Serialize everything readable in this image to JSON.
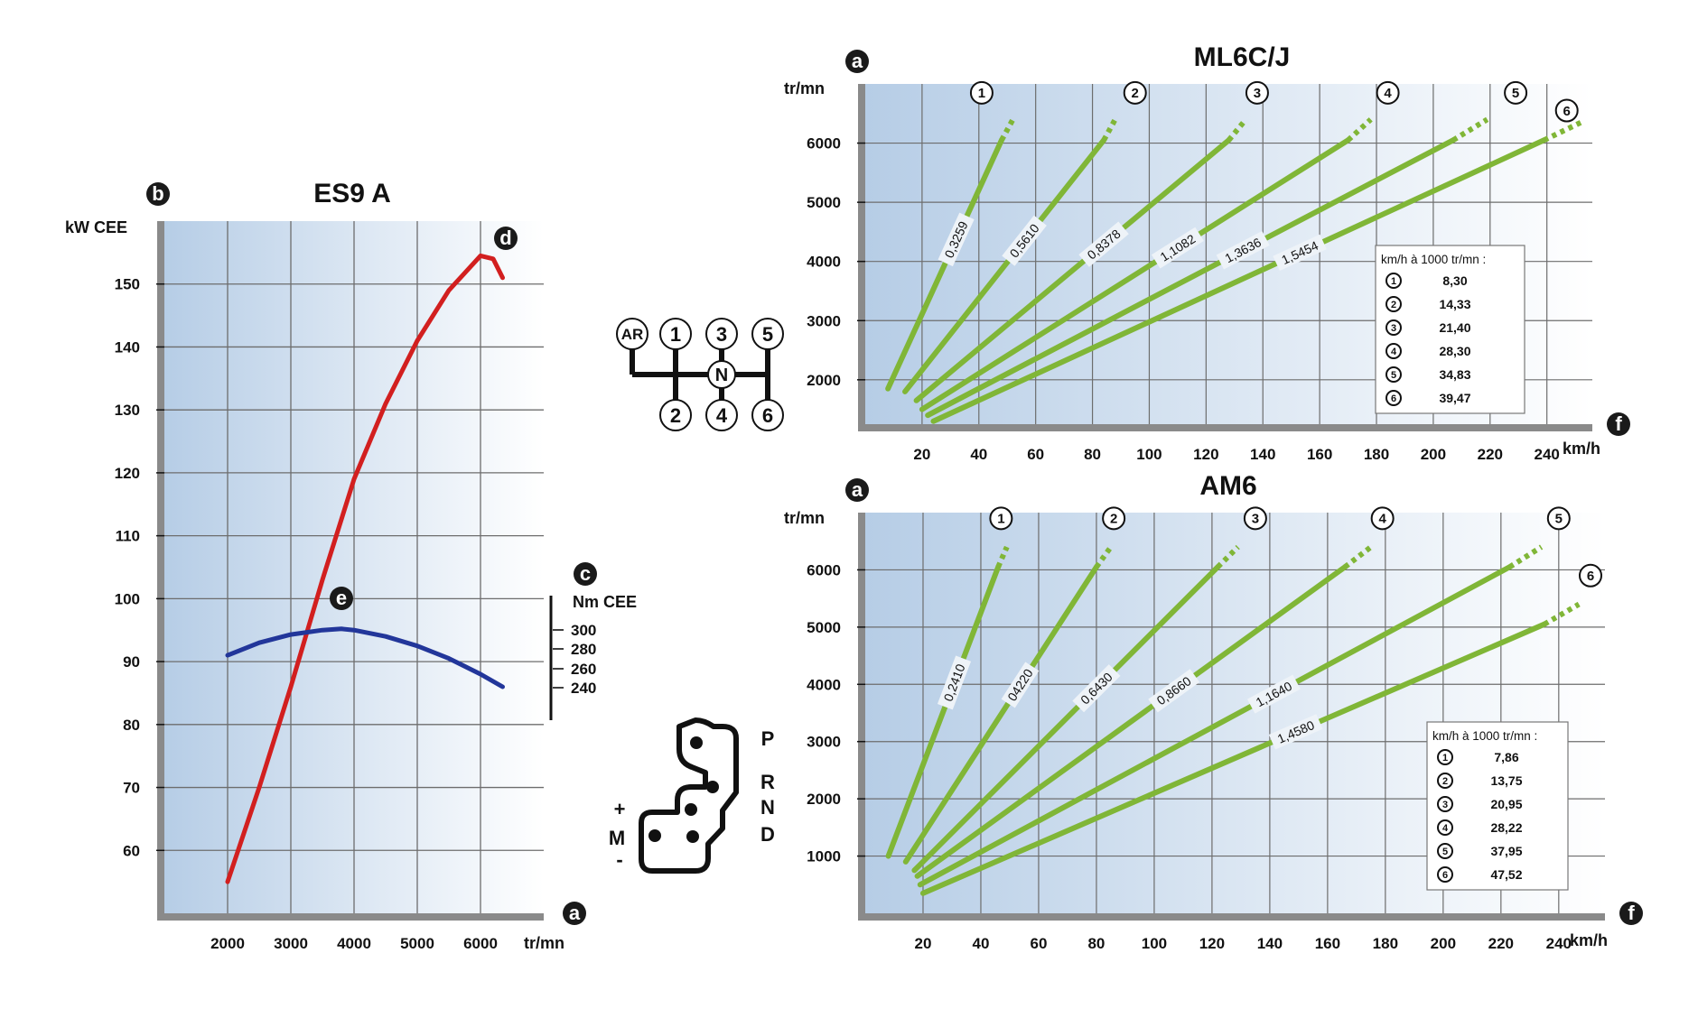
{
  "chart_data": [
    {
      "type": "line",
      "title": "ES9 A",
      "corner_labels": {
        "left_axis": "b",
        "right_axis": "c",
        "power_curve": "d",
        "torque_curve": "e",
        "x_axis": "a"
      },
      "xlabel": "tr/mn",
      "ylabel": "kW CEE",
      "y2label": "Nm CEE",
      "x_ticks": [
        2000,
        3000,
        4000,
        5000,
        6000
      ],
      "y_ticks": [
        60,
        70,
        80,
        90,
        100,
        110,
        120,
        130,
        140,
        150
      ],
      "y2_ticks": [
        300,
        280,
        260,
        240
      ],
      "xlim": [
        1000,
        7000
      ],
      "ylim": [
        50,
        160
      ],
      "grid": true,
      "series": [
        {
          "label": "d",
          "color": "#d21f1f",
          "x": [
            2000,
            2500,
            3000,
            3500,
            4000,
            4500,
            5000,
            5500,
            6000,
            6200,
            6350
          ],
          "y": [
            55,
            70,
            86,
            103,
            119,
            131,
            141,
            149,
            154.5,
            154,
            151
          ]
        },
        {
          "label": "e",
          "color": "#22369a",
          "x": [
            2000,
            2500,
            3000,
            3500,
            3800,
            4000,
            4500,
            5000,
            5500,
            6000,
            6350
          ],
          "y": [
            91,
            93,
            94.3,
            95,
            95.2,
            95,
            94,
            92.5,
            90.5,
            88,
            86
          ]
        }
      ]
    },
    {
      "type": "line",
      "title": "ML6C/J",
      "corner_labels": {
        "y_axis": "a",
        "x_axis": "f"
      },
      "xlabel": "km/h",
      "ylabel": "tr/mn",
      "x_ticks": [
        20,
        40,
        60,
        80,
        100,
        120,
        140,
        160,
        180,
        200,
        220,
        240
      ],
      "y_ticks": [
        2000,
        3000,
        4000,
        5000,
        6000
      ],
      "xlim": [
        0,
        256
      ],
      "ylim": [
        1250,
        7000
      ],
      "grid": true,
      "legend": {
        "title": "km/h à 1000 tr/mn :",
        "placement": "lower-right",
        "entries": [
          {
            "gear": "1",
            "value": "8,30"
          },
          {
            "gear": "2",
            "value": "14,33"
          },
          {
            "gear": "3",
            "value": "21,40"
          },
          {
            "gear": "4",
            "value": "28,30"
          },
          {
            "gear": "5",
            "value": "34,83"
          },
          {
            "gear": "6",
            "value": "39,47"
          }
        ]
      },
      "series": [
        {
          "gear": "1",
          "ratio_label": "0,3259",
          "x0": 8,
          "y0": 1850,
          "x1": 48,
          "y1": 6050,
          "x2": 52,
          "y2": 6400,
          "label_xy": [
            41,
            6850
          ]
        },
        {
          "gear": "2",
          "ratio_label": "0,5610",
          "x0": 14,
          "y0": 1800,
          "x1": 84,
          "y1": 6050,
          "x2": 88,
          "y2": 6400,
          "label_xy": [
            95,
            6850
          ]
        },
        {
          "gear": "3",
          "ratio_label": "0,8378",
          "x0": 18,
          "y0": 1650,
          "x1": 128,
          "y1": 6050,
          "x2": 134,
          "y2": 6400,
          "label_xy": [
            138,
            6850
          ]
        },
        {
          "gear": "4",
          "ratio_label": "1,1082",
          "x0": 20,
          "y0": 1500,
          "x1": 170,
          "y1": 6050,
          "x2": 178,
          "y2": 6400,
          "label_xy": [
            184,
            6850
          ]
        },
        {
          "gear": "5",
          "ratio_label": "1,3636",
          "x0": 22,
          "y0": 1400,
          "x1": 207,
          "y1": 6050,
          "x2": 219,
          "y2": 6400,
          "label_xy": [
            229,
            6850
          ]
        },
        {
          "gear": "6",
          "ratio_label": "1,5454",
          "x0": 24,
          "y0": 1300,
          "x1": 239,
          "y1": 6050,
          "x2": 252,
          "y2": 6350,
          "label_xy": [
            247,
            6550
          ]
        }
      ]
    },
    {
      "type": "line",
      "title": "AM6",
      "corner_labels": {
        "y_axis": "a",
        "x_axis": "f"
      },
      "xlabel": "km/h",
      "ylabel": "tr/mn",
      "x_ticks": [
        20,
        40,
        60,
        80,
        100,
        120,
        140,
        160,
        180,
        200,
        220,
        240
      ],
      "y_ticks": [
        1000,
        2000,
        3000,
        4000,
        5000,
        6000
      ],
      "xlim": [
        0,
        256
      ],
      "ylim": [
        0,
        7000
      ],
      "grid": true,
      "legend": {
        "title": "km/h à 1000 tr/mn :",
        "placement": "lower-right",
        "entries": [
          {
            "gear": "1",
            "value": "7,86"
          },
          {
            "gear": "2",
            "value": "13,75"
          },
          {
            "gear": "3",
            "value": "20,95"
          },
          {
            "gear": "4",
            "value": "28,22"
          },
          {
            "gear": "5",
            "value": "37,95"
          },
          {
            "gear": "6",
            "value": "47,52"
          }
        ]
      },
      "series": [
        {
          "gear": "1",
          "ratio_label": "0,2410",
          "x0": 8,
          "y0": 1000,
          "x1": 46,
          "y1": 6050,
          "x2": 49,
          "y2": 6400,
          "label_xy": [
            47,
            6900
          ]
        },
        {
          "gear": "2",
          "ratio_label": "04220",
          "x0": 14,
          "y0": 900,
          "x1": 80,
          "y1": 6050,
          "x2": 85,
          "y2": 6400,
          "label_xy": [
            86,
            6900
          ]
        },
        {
          "gear": "3",
          "ratio_label": "0,6430",
          "x0": 17,
          "y0": 750,
          "x1": 122,
          "y1": 6050,
          "x2": 129,
          "y2": 6400,
          "label_xy": [
            135,
            6900
          ]
        },
        {
          "gear": "4",
          "ratio_label": "0,8660",
          "x0": 18,
          "y0": 650,
          "x1": 166,
          "y1": 6050,
          "x2": 175,
          "y2": 6400,
          "label_xy": [
            179,
            6900
          ]
        },
        {
          "gear": "5",
          "ratio_label": "1,1640",
          "x0": 19,
          "y0": 500,
          "x1": 223,
          "y1": 6050,
          "x2": 234,
          "y2": 6400,
          "label_xy": [
            240,
            6900
          ]
        },
        {
          "gear": "6",
          "ratio_label": "1,4580",
          "x0": 20,
          "y0": 350,
          "x1": 235,
          "y1": 5050,
          "x2": 247,
          "y2": 5400,
          "label_xy": [
            251,
            5900
          ]
        }
      ]
    }
  ],
  "manual_gate": {
    "reverse": "AR",
    "neutral": "N",
    "top_gears": [
      "1",
      "3",
      "5"
    ],
    "bottom_gears": [
      "2",
      "4",
      "6"
    ]
  },
  "auto_gate": {
    "positions": [
      "P",
      "R",
      "N",
      "D"
    ],
    "manual": [
      "+",
      "M",
      "-"
    ]
  },
  "colors": {
    "power": "#d21f1f",
    "torque": "#22369a",
    "gear_line": "#80b637",
    "plot_bg_left": "#b6cde6",
    "plot_bg_right": "#ffffff",
    "grid": "#6d6d6d",
    "badge": "#1a1a1a"
  }
}
